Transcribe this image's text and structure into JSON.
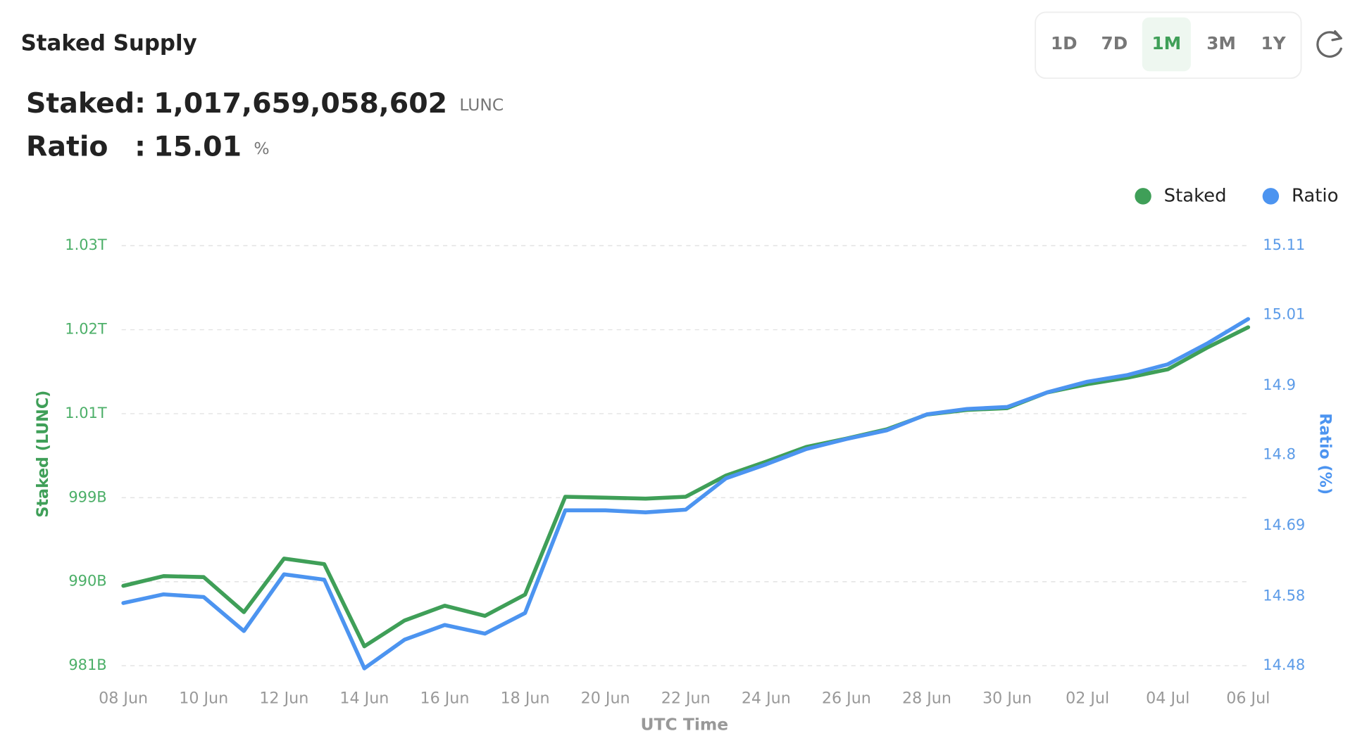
{
  "header": {
    "title": "Staked Supply",
    "ranges": [
      "1D",
      "7D",
      "1M",
      "3M",
      "1Y"
    ],
    "active_range": "1M",
    "stats": [
      {
        "label": "Staked",
        "separator": ":",
        "value": "1,017,659,058,602",
        "unit": "LUNC"
      },
      {
        "label": "Ratio",
        "separator": ":",
        "value": "15.01",
        "unit": "%"
      }
    ]
  },
  "chart_data": {
    "type": "line",
    "x_label": "UTC Time",
    "y_label": "Staked (LUNC)",
    "y2_label": "Ratio (%)",
    "categories": [
      "08 Jun",
      null,
      "10 Jun",
      null,
      "12 Jun",
      null,
      "14 Jun",
      null,
      "16 Jun",
      null,
      "18 Jun",
      null,
      "20 Jun",
      null,
      "22 Jun",
      null,
      "24 Jun",
      null,
      "26 Jun",
      null,
      "28 Jun",
      null,
      "30 Jun",
      null,
      "02 Jul",
      null,
      "04 Jul",
      null,
      "06 Jul"
    ],
    "series": [
      {
        "name": "Staked",
        "color": "#3f9f58",
        "axis": "y",
        "values": [
          989650000000,
          990700000000,
          990600000000,
          986800000000,
          992600000000,
          992000000000,
          983100000000,
          985900000000,
          987500000000,
          986400000000,
          988700000000,
          999300000000,
          999200000000,
          999100000000,
          999300000000,
          1001600000000,
          1003100000000,
          1004700000000,
          1005600000000,
          1006600000000,
          1008200000000,
          1008700000000,
          1008900000000,
          1010600000000,
          1011500000000,
          1012200000000,
          1013100000000,
          1015500000000,
          1017659058602
        ]
      },
      {
        "name": "Ratio",
        "color": "#4c94f0",
        "axis": "y2",
        "values": [
          14.574,
          14.587,
          14.583,
          14.532,
          14.617,
          14.609,
          14.476,
          14.519,
          14.541,
          14.528,
          14.559,
          14.713,
          14.713,
          14.71,
          14.714,
          14.761,
          14.782,
          14.805,
          14.82,
          14.833,
          14.857,
          14.865,
          14.868,
          14.89,
          14.906,
          14.916,
          14.932,
          14.964,
          15.0
        ]
      }
    ],
    "ylim": [
      981000000000,
      1026500000000
    ],
    "yticks": [
      {
        "value": 981000000000,
        "label": "981B"
      },
      {
        "value": 990100000000,
        "label": "990B"
      },
      {
        "value": 999200000000,
        "label": "999B"
      },
      {
        "value": 1008300000000,
        "label": "1.01T"
      },
      {
        "value": 1017400000000,
        "label": "1.02T"
      },
      {
        "value": 1026500000000,
        "label": "1.03T"
      }
    ],
    "y2lim": [
      14.48,
      15.11
    ],
    "y2ticks": [
      14.48,
      {
        "value": 14.584,
        "label": "14.58"
      },
      14.69,
      {
        "value": 14.796,
        "label": "14.8"
      },
      14.9,
      {
        "value": 15.006,
        "label": "15.01"
      },
      15.11
    ],
    "grid": true,
    "legend": "top-right"
  }
}
